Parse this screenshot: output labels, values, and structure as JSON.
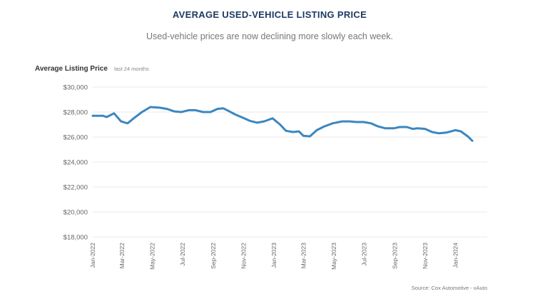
{
  "chart_data": {
    "type": "line",
    "title": "AVERAGE USED-VEHICLE LISTING PRICE",
    "subtitle": "Used-vehicle prices are now declining more slowly each week.",
    "ylabel": "Average Listing Price",
    "ylabel_note": "last 24 months",
    "xlabel": "",
    "source": "Source: Cox Automotive - vAuto",
    "ylim": [
      18000,
      30000
    ],
    "yticks": [
      18000,
      20000,
      22000,
      24000,
      26000,
      28000,
      30000
    ],
    "ytick_labels": [
      "$18,000",
      "$20,000",
      "$22,000",
      "$24,000",
      "$26,000",
      "$28,000",
      "$30,000"
    ],
    "xlim": [
      "2022-01-01",
      "2024-03-05"
    ],
    "xticks": [
      "2022-01-01",
      "2022-03-01",
      "2022-05-01",
      "2022-07-01",
      "2022-09-01",
      "2022-11-01",
      "2023-01-01",
      "2023-03-01",
      "2023-05-01",
      "2023-07-01",
      "2023-09-01",
      "2023-11-01",
      "2024-01-01"
    ],
    "xtick_labels": [
      "Jan-2022",
      "Mar-2022",
      "May-2022",
      "Jul-2022",
      "Sep-2022",
      "Nov-2022",
      "Jan-2023",
      "Mar-2023",
      "May-2023",
      "Jul-2023",
      "Sep-2023",
      "Nov-2023",
      "Jan-2024"
    ],
    "grid": true,
    "line_color": "#3b87c0",
    "series": [
      {
        "x": [
          "2022-01-01",
          "2022-01-22",
          "2022-01-29",
          "2022-02-13",
          "2022-02-27",
          "2022-03-12",
          "2022-03-26",
          "2022-04-10",
          "2022-04-27",
          "2022-05-16",
          "2022-05-30",
          "2022-06-14",
          "2022-06-28",
          "2022-07-13",
          "2022-07-27",
          "2022-08-11",
          "2022-08-26",
          "2022-09-09",
          "2022-09-21",
          "2022-10-01",
          "2022-10-15",
          "2022-10-30",
          "2022-11-13",
          "2022-11-28",
          "2022-12-12",
          "2022-12-29",
          "2023-01-13",
          "2023-01-25",
          "2023-02-08",
          "2023-02-20",
          "2023-03-01",
          "2023-03-14",
          "2023-03-28",
          "2023-04-12",
          "2023-04-29",
          "2023-05-18",
          "2023-06-02",
          "2023-06-16",
          "2023-06-30",
          "2023-07-15",
          "2023-07-29",
          "2023-08-13",
          "2023-08-30",
          "2023-09-11",
          "2023-09-25",
          "2023-10-07",
          "2023-10-17",
          "2023-11-01",
          "2023-11-15",
          "2023-11-29",
          "2023-12-13",
          "2024-01-01",
          "2024-01-12",
          "2024-01-26",
          "2024-02-04"
        ],
        "values": [
          27700,
          27700,
          27600,
          27900,
          27250,
          27100,
          27550,
          28000,
          28400,
          28350,
          28250,
          28050,
          28000,
          28150,
          28150,
          28000,
          28000,
          28250,
          28300,
          28100,
          27800,
          27550,
          27300,
          27150,
          27250,
          27500,
          27000,
          26500,
          26400,
          26450,
          26100,
          26050,
          26550,
          26850,
          27100,
          27250,
          27250,
          27200,
          27200,
          27100,
          26850,
          26700,
          26700,
          26800,
          26800,
          26650,
          26700,
          26650,
          26400,
          26300,
          26350,
          26550,
          26450,
          26050,
          25700
        ]
      }
    ]
  }
}
